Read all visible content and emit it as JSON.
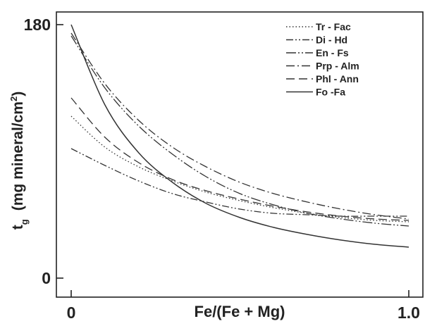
{
  "chart_data": {
    "type": "line",
    "xlabel": "Fe/(Fe + Mg)",
    "ylabel_main": "t",
    "ylabel_sub": "g",
    "ylabel_units": "(mg mineral/cm",
    "ylabel_sup": "2",
    "ylabel_close": ")",
    "xlim": [
      0,
      1.0
    ],
    "ylim": [
      0,
      180
    ],
    "x_ticks": [
      {
        "value": 0,
        "label": "0"
      },
      {
        "value": 1.0,
        "label": "1.0"
      }
    ],
    "y_ticks": [
      {
        "value": 0,
        "label": "0"
      },
      {
        "value": 180,
        "label": "180"
      }
    ],
    "grid": false,
    "legend_position": "top-right",
    "x": [
      0,
      0.1,
      0.2,
      0.3,
      0.4,
      0.5,
      0.6,
      0.7,
      0.8,
      0.9,
      1.0
    ],
    "series": [
      {
        "name": "Tr - Fac",
        "dash": "dotted",
        "values": [
          115,
          93,
          79,
          69,
          61,
          55,
          50,
          46,
          43,
          41,
          40
        ]
      },
      {
        "name": "Di - Hd",
        "dash": "dash-dot-dot",
        "values": [
          92,
          80,
          69,
          60,
          54,
          49,
          46,
          45,
          44,
          44,
          44
        ]
      },
      {
        "name": "En - Fs",
        "dash": "dash-dot-dot-long",
        "values": [
          172,
          135,
          108,
          88,
          72,
          60,
          52,
          46,
          42,
          39,
          37
        ]
      },
      {
        "name": "Prp - Alm",
        "dash": "dash-dot",
        "values": [
          174,
          138,
          112,
          93,
          79,
          68,
          60,
          54,
          49,
          45,
          42
        ]
      },
      {
        "name": "Phl - Ann",
        "dash": "dashed",
        "values": [
          128,
          100,
          82,
          70,
          62,
          56,
          51,
          47,
          44,
          42,
          41
        ]
      },
      {
        "name": "Fo -Fa",
        "dash": "solid",
        "values": [
          180,
          123,
          89,
          68,
          53,
          43,
          36,
          31,
          27,
          24,
          22
        ]
      }
    ]
  }
}
